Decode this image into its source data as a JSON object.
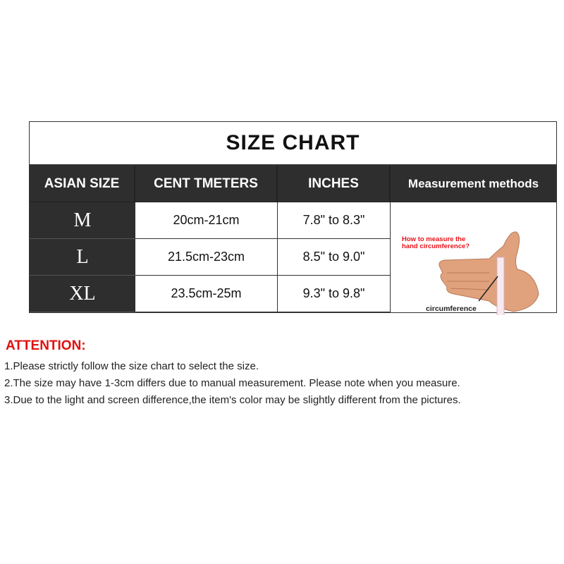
{
  "title": "SIZE CHART",
  "headers": [
    "ASIAN SIZE",
    "CENT TMETERS",
    "INCHES",
    "Measurement methods"
  ],
  "rows": [
    {
      "size": "M",
      "cm": "20cm-21cm",
      "inches": "7.8\" to 8.3\""
    },
    {
      "size": "L",
      "cm": "21.5cm-23cm",
      "inches": "8.5\" to 9.0\""
    },
    {
      "size": "XL",
      "cm": "23.5cm-25m",
      "inches": "9.3\" to 9.8\""
    }
  ],
  "illustration": {
    "question": "How to measure the hand circumference?",
    "label": "circumference"
  },
  "attention": {
    "heading": "ATTENTION:",
    "notes": [
      "1.Please strictly follow the size chart to select the size.",
      "2.The size may have 1-3cm differs due to manual measurement. Please note when you measure.",
      "3.Due to the light and screen difference,the item's color may be slightly different from  the pictures."
    ]
  },
  "colors": {
    "header_bg": "#2e2e2e",
    "attention": "#e01010",
    "question": "#e8121a"
  }
}
